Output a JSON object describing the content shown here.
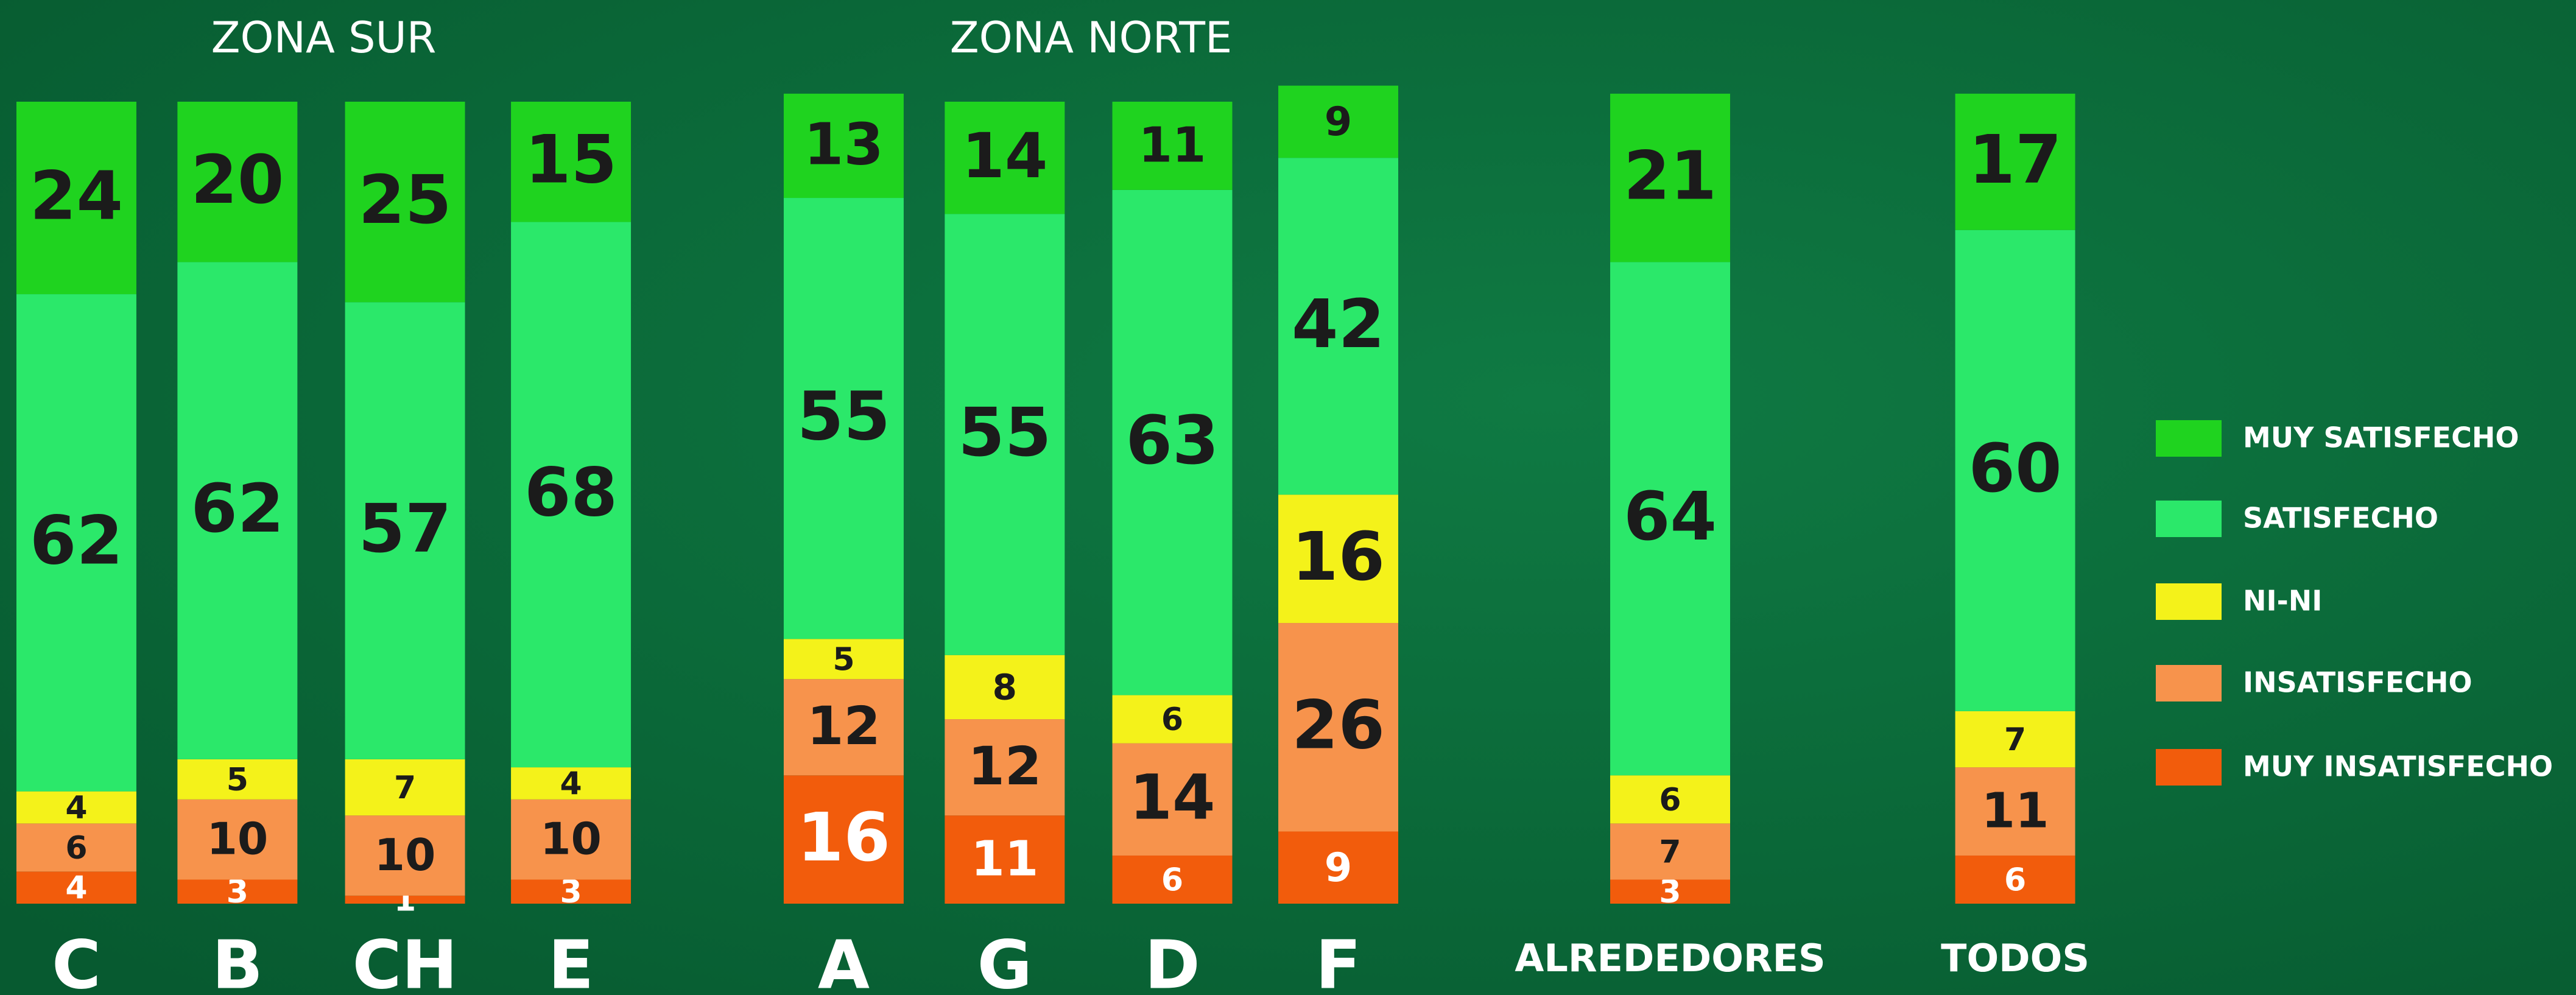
{
  "chart_data": {
    "type": "stacked_bar",
    "group_labels": [
      "ZONA SUR",
      "ZONA NORTE"
    ],
    "categories": [
      "C",
      "B",
      "CH",
      "E",
      "A",
      "G",
      "D",
      "F",
      "ALREDEDORES",
      "TODOS"
    ],
    "series": [
      {
        "name": "MUY INSATISFECHO",
        "color": "#f25c0c",
        "values": [
          4,
          3,
          1,
          3,
          16,
          11,
          6,
          9,
          3,
          6
        ]
      },
      {
        "name": "INSATISFECHO",
        "color": "#f7934c",
        "values": [
          6,
          10,
          10,
          10,
          12,
          12,
          14,
          26,
          7,
          11
        ]
      },
      {
        "name": "NI-NI",
        "color": "#f4f21a",
        "values": [
          4,
          5,
          7,
          4,
          5,
          8,
          6,
          16,
          6,
          7
        ]
      },
      {
        "name": "SATISFECHO",
        "color": "#2be86a",
        "values": [
          62,
          62,
          57,
          68,
          55,
          55,
          63,
          42,
          64,
          60
        ]
      },
      {
        "name": "MUY SATISFECHO",
        "color": "#1fd31f",
        "values": [
          24,
          20,
          25,
          15,
          13,
          14,
          11,
          9,
          21,
          17
        ]
      }
    ],
    "ylim": [
      0,
      100
    ]
  }
}
